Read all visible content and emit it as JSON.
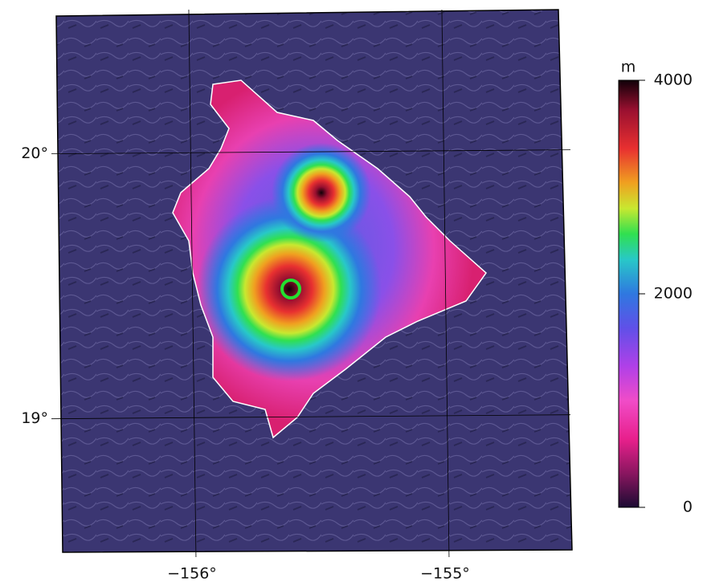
{
  "map": {
    "lonlim": [
      -156.53,
      -154.53
    ],
    "latlim": [
      18.49,
      20.52
    ],
    "lonticks": [
      {
        "value": -156,
        "label": "−156°"
      },
      {
        "value": -155,
        "label": "−155°"
      }
    ],
    "latticks": [
      {
        "value": 20,
        "label": "20°"
      },
      {
        "value": 19,
        "label": "19°"
      }
    ],
    "colorbar": {
      "unit": "m",
      "lim": [
        0,
        4000
      ],
      "ticks": [
        0,
        2000,
        4000
      ]
    }
  }
}
